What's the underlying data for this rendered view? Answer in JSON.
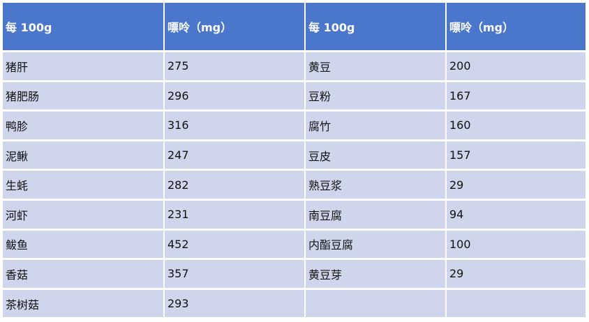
{
  "headers": [
    "每 100g",
    "嘌呤（mg）",
    "每 100g",
    "嘌呤（mg）"
  ],
  "rows": [
    [
      "猪肝",
      "275",
      "黄豆",
      "200"
    ],
    [
      "猪肥肠",
      "296",
      "豆粉",
      "167"
    ],
    [
      "鸭胗",
      "316",
      "腐竹",
      "160"
    ],
    [
      "泥鳅",
      "247",
      "豆皮",
      "157"
    ],
    [
      "生蚝",
      "282",
      "熟豆浆",
      "29"
    ],
    [
      "河虾",
      "231",
      "南豆腐",
      "94"
    ],
    [
      "鲅鱼",
      "452",
      "内酯豆腐",
      "100"
    ],
    [
      "香菇",
      "357",
      "黄豆芽",
      "29"
    ],
    [
      "茶树菇",
      "293",
      "",
      ""
    ]
  ],
  "colors": {
    "header_bg": "#4a76cc",
    "row_bg": "#cfd5ea"
  }
}
